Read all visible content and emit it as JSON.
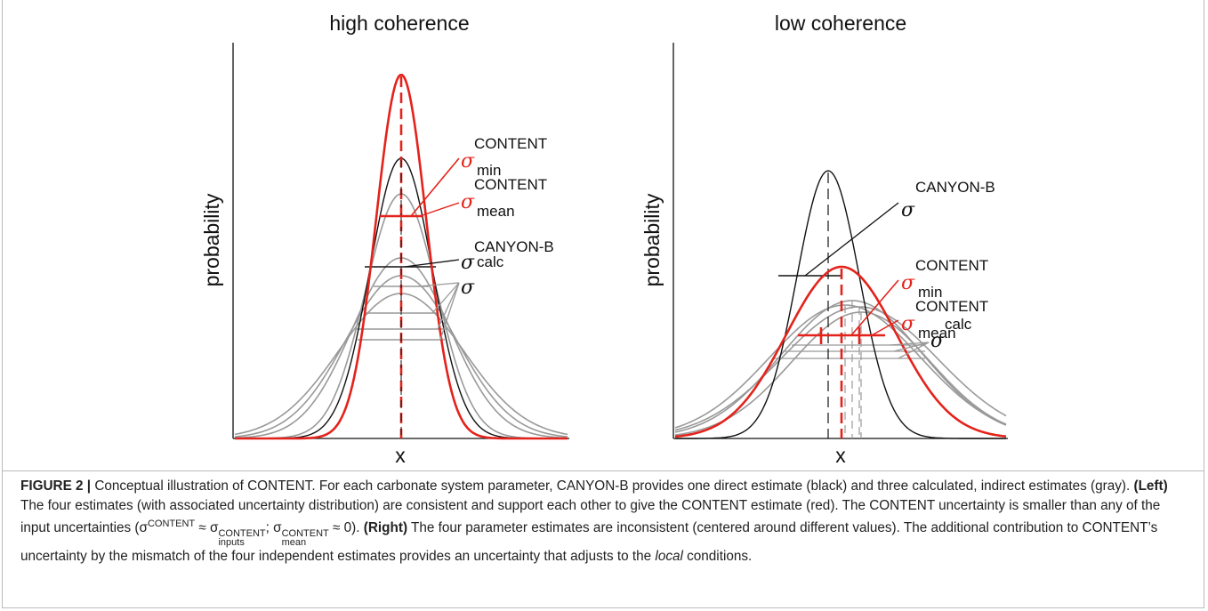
{
  "panels": [
    {
      "title": "high coherence",
      "y_label": "probability",
      "x_label": "x",
      "sigma_labels": [
        {
          "symbol": "σ",
          "sup": "CONTENT",
          "sub": "min"
        },
        {
          "symbol": "σ",
          "sup": "CONTENT",
          "sub": "mean"
        },
        {
          "symbol": "σ",
          "sup": "CANYON-B",
          "sub": "calc"
        },
        {
          "symbol": "σ"
        }
      ]
    },
    {
      "title": "low coherence",
      "y_label": "probability",
      "x_label": "x",
      "sigma_labels": [
        {
          "symbol": "σ",
          "sup": "CANYON-B"
        },
        {
          "symbol": "σ",
          "sup": "CONTENT",
          "sub": "min"
        },
        {
          "symbol": "σ",
          "sup": "CONTENT",
          "sub": "mean"
        },
        {
          "symbol": "σ",
          "sup": "calc"
        }
      ]
    }
  ],
  "caption": [
    "FIGURE 2 |",
    " Conceptual illustration of CONTENT. For each carbonate system parameter, CANYON-B provides one direct estimate (black) and three calculated, indirect estimates (gray). ",
    "(Left)",
    " The four estimates (with associated uncertainty distribution) are consistent and support each other to give the CONTENT estimate (red). The CONTENT uncertainty is smaller than any of the input uncertainties (",
    "σ",
    "CONTENT",
    " ≈ ",
    "σ",
    "CONTENT",
    "inputs",
    "; ",
    "σ",
    "CONTENT",
    "mean",
    " ≈ 0). ",
    "(Right)",
    " The four parameter estimates are inconsistent (centered around different values). The additional contribution to CONTENT’s uncertainty by the mismatch of the four independent estimates provides an uncertainty that adjusts to the ",
    "local",
    " conditions."
  ]
}
